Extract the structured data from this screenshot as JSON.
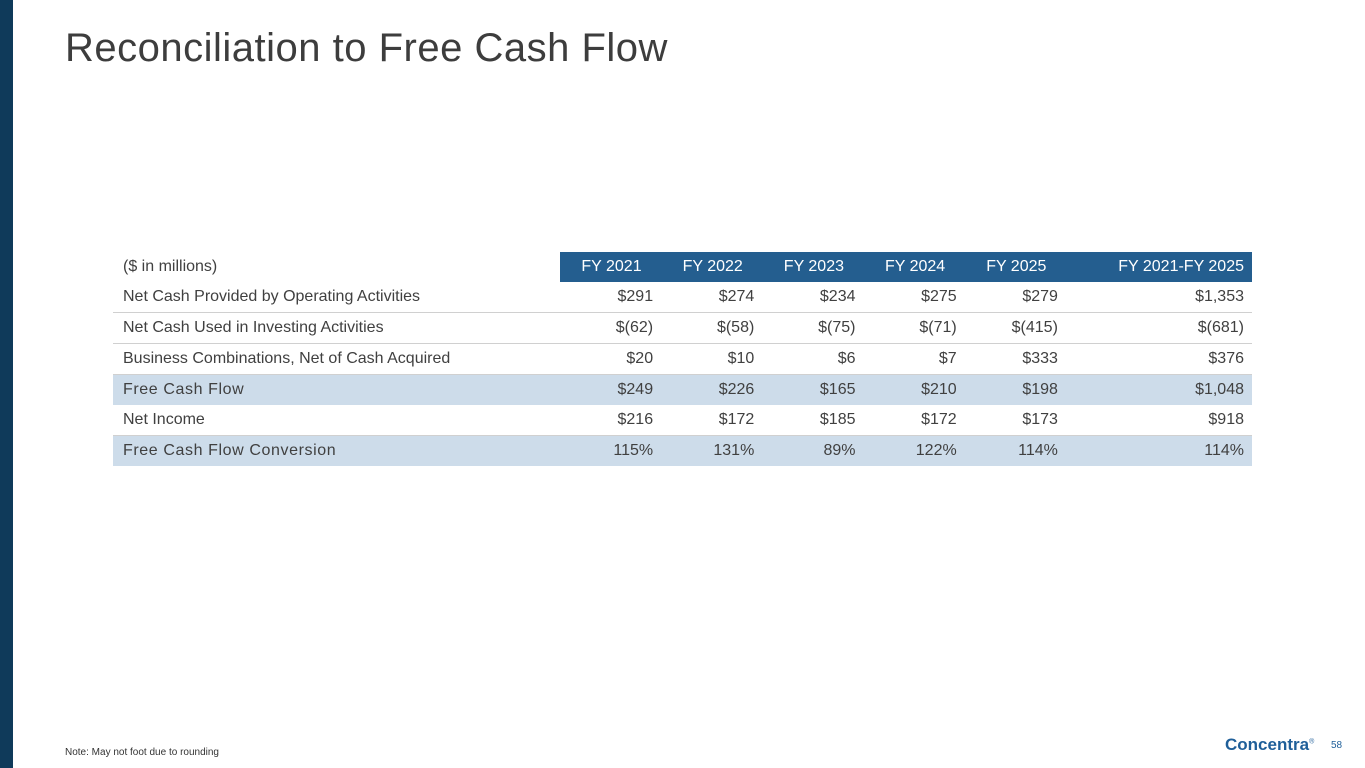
{
  "header": {
    "title": "Reconciliation to Free Cash Flow"
  },
  "table": {
    "columns": [
      "($ in millions)",
      "FY 2021",
      "FY 2022",
      "FY 2023",
      "FY 2024",
      "FY 2025",
      "FY 2021-FY 2025"
    ],
    "rows": [
      [
        "Net Cash Provided by Operating Activities",
        "$291",
        "$274",
        "$234",
        "$275",
        "$279",
        "$1,353"
      ],
      [
        "Net Cash Used in Investing Activities",
        "$(62)",
        "$(58)",
        "$(75)",
        "$(71)",
        "$(415)",
        "$(681)"
      ],
      [
        "Business Combinations, Net of Cash Acquired",
        "$20",
        "$10",
        "$6",
        "$7",
        "$333",
        "$376"
      ],
      [
        "Free Cash Flow",
        "$249",
        "$226",
        "$165",
        "$210",
        "$198",
        "$1,048"
      ],
      [
        "Net Income",
        "$216",
        "$172",
        "$185",
        "$172",
        "$173",
        "$918"
      ],
      [
        "Free Cash Flow Conversion",
        "115%",
        "131%",
        "89%",
        "122%",
        "114%",
        "114%"
      ]
    ]
  },
  "footer": {
    "note": "Note: May not foot due to rounding",
    "logo": "Concentra",
    "logo_mark": "®",
    "page_number": "58"
  }
}
